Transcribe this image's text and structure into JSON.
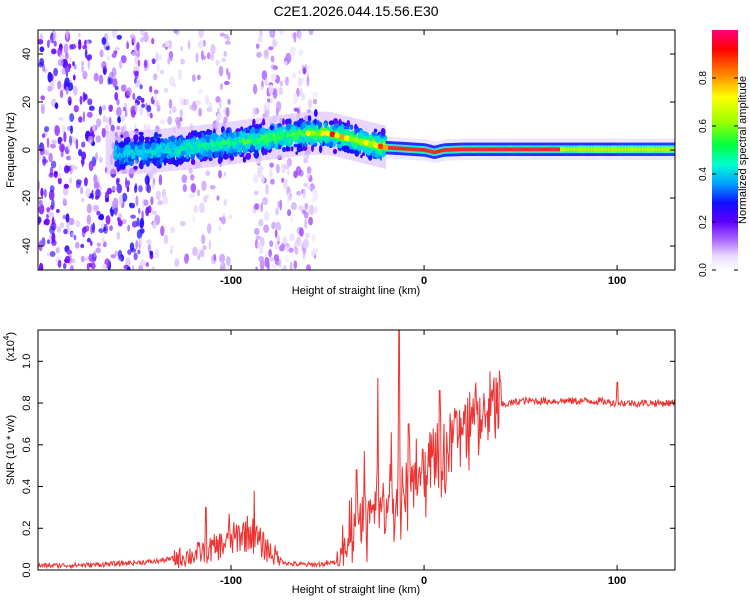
{
  "title": "C2E1.2026.044.15.56.E30",
  "chart_data": [
    {
      "type": "heatmap",
      "name": "spectrogram",
      "xlabel": "Height of straight line (km)",
      "ylabel": "Frequency (Hz)",
      "xlim": [
        -200,
        130
      ],
      "ylim": [
        -50,
        50
      ],
      "xticks": [
        -100,
        0,
        100
      ],
      "xtick_labels": [
        "-100",
        "0",
        "100"
      ],
      "yticks": [
        -40,
        -20,
        0,
        20,
        40
      ],
      "ytick_labels": [
        "-40",
        "-20",
        "0",
        "20",
        "40"
      ],
      "ridge": {
        "x": [
          -150,
          -120,
          -100,
          -80,
          -60,
          -50,
          -40,
          -30,
          -20,
          -10,
          0,
          5,
          10,
          20,
          40,
          60,
          80,
          100,
          130
        ],
        "y": [
          -1,
          1,
          3,
          5,
          7,
          7,
          5,
          3,
          1,
          0.5,
          0,
          -1,
          0,
          0.3,
          0.3,
          0.3,
          0.3,
          0.3,
          0.3
        ]
      },
      "colorbar": {
        "label": "Normalized spectral amplitude",
        "range": [
          0,
          1
        ],
        "ticks": [
          0.0,
          0.2,
          0.4,
          0.6,
          0.8
        ],
        "tick_labels": [
          "0.0",
          "0.2",
          "0.4",
          "0.6",
          "0.8"
        ],
        "colors": [
          "#ffffff",
          "#d6b8ff",
          "#7a00ff",
          "#1010ff",
          "#00c8ff",
          "#00ff80",
          "#80ff00",
          "#ffff00",
          "#ff8000",
          "#ff0000",
          "#ff0080"
        ]
      }
    },
    {
      "type": "line",
      "name": "snr",
      "xlabel": "Height of straight line (km)",
      "ylabel": "SNR (10 * v/v)",
      "y_multiplier_label": "(x10",
      "y_multiplier_exp": "4",
      "xlim": [
        -200,
        130
      ],
      "ylim": [
        0,
        1.15
      ],
      "xticks": [
        -100,
        0,
        100
      ],
      "xtick_labels": [
        "-100",
        "0",
        "100"
      ],
      "yticks": [
        0.0,
        0.2,
        0.4,
        0.6,
        0.8,
        1.0
      ],
      "ytick_labels": [
        "0.0",
        "0.2",
        "0.4",
        "0.6",
        "0.8",
        "1.0"
      ],
      "line_color": "#ee3333",
      "envelope": {
        "x": [
          -200,
          -170,
          -140,
          -120,
          -110,
          -100,
          -95,
          -90,
          -85,
          -80,
          -75,
          -70,
          -60,
          -50,
          -45,
          -42,
          -40,
          -38,
          -35,
          -30,
          -25,
          -20,
          -15,
          -10,
          -5,
          0,
          5,
          10,
          15,
          20,
          25,
          30,
          35,
          40,
          50,
          60,
          70,
          80,
          90,
          100,
          110,
          120,
          130
        ],
        "y": [
          0.02,
          0.025,
          0.04,
          0.07,
          0.1,
          0.14,
          0.17,
          0.18,
          0.13,
          0.09,
          0.05,
          0.03,
          0.025,
          0.03,
          0.04,
          0.07,
          0.13,
          0.2,
          0.23,
          0.26,
          0.3,
          0.31,
          0.34,
          0.4,
          0.44,
          0.48,
          0.53,
          0.57,
          0.62,
          0.66,
          0.7,
          0.74,
          0.77,
          0.79,
          0.81,
          0.81,
          0.81,
          0.81,
          0.81,
          0.8,
          0.8,
          0.8,
          0.8
        ]
      },
      "spikes": [
        {
          "x": -113,
          "y": 0.3
        },
        {
          "x": -101,
          "y": 0.27
        },
        {
          "x": -88,
          "y": 0.38
        },
        {
          "x": -35,
          "y": 0.48
        },
        {
          "x": -31,
          "y": 0.57
        },
        {
          "x": -24,
          "y": 0.92
        },
        {
          "x": -17,
          "y": 0.66
        },
        {
          "x": -13,
          "y": 1.17
        },
        {
          "x": -8,
          "y": 0.7
        },
        {
          "x": 8,
          "y": 0.86
        },
        {
          "x": 100,
          "y": 0.9
        }
      ]
    }
  ]
}
